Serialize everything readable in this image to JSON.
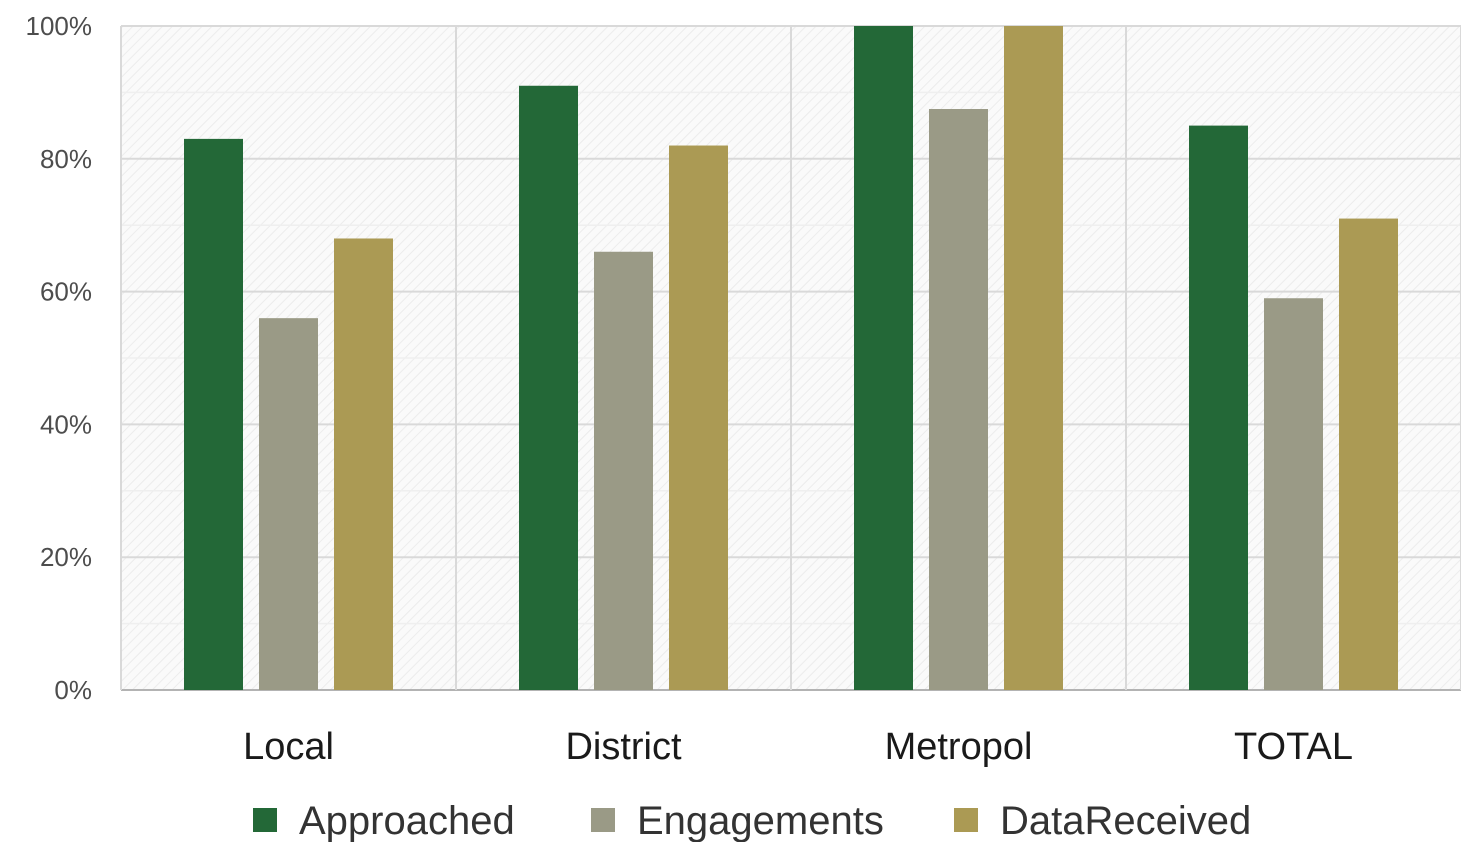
{
  "chart_data": {
    "type": "bar",
    "categories": [
      "Local",
      "District",
      "Metropol",
      "TOTAL"
    ],
    "series": [
      {
        "name": "Approached",
        "color": "#236837",
        "values": [
          83,
          91,
          100,
          85
        ]
      },
      {
        "name": "Engagements",
        "color": "#9a9a86",
        "values": [
          56,
          66,
          87.5,
          59
        ]
      },
      {
        "name": "DataReceived",
        "color": "#ab9a54",
        "values": [
          68,
          82,
          100,
          71
        ]
      }
    ],
    "y_ticks": [
      "0%",
      "20%",
      "40%",
      "60%",
      "80%",
      "100%"
    ],
    "ylim": [
      0,
      100
    ],
    "grid": true,
    "legend_position": "bottom"
  }
}
